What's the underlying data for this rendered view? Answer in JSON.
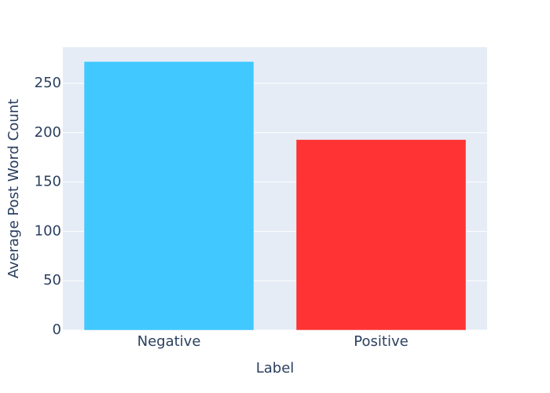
{
  "chart_data": {
    "type": "bar",
    "x_label": "Label",
    "y_label": "Average Post Word Count",
    "categories": [
      "Negative",
      "Positive"
    ],
    "values": [
      272,
      193
    ],
    "colors": [
      "#40c8ff",
      "#ff3333"
    ],
    "ylim": [
      0,
      286.6
    ],
    "yticks": [
      0,
      50,
      100,
      150,
      200,
      250
    ],
    "grid": true
  }
}
